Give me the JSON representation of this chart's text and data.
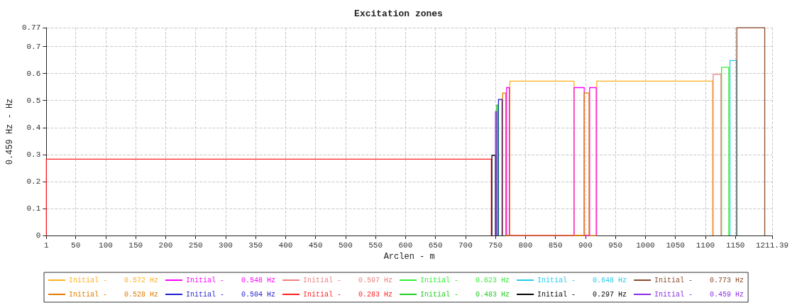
{
  "chart_data": {
    "type": "line",
    "title": "Excitation zones",
    "xlabel": "Arclen - m",
    "ylabel": "0.459 Hz - Hz",
    "xlim": [
      1,
      1211.39
    ],
    "xticks": [
      1,
      50,
      100,
      150,
      200,
      250,
      300,
      350,
      400,
      450,
      500,
      550,
      600,
      650,
      700,
      750,
      800,
      850,
      900,
      950,
      1000,
      1050,
      1100,
      1150,
      1211.39
    ],
    "ylim": [
      0,
      0.77
    ],
    "yticks": [
      0,
      0.1,
      0.2,
      0.3,
      0.4,
      0.5,
      0.6,
      0.7,
      0.77
    ],
    "grid": true,
    "legend": "bottom",
    "marker": "none",
    "line_style": "solid",
    "series": [
      {
        "name": "Initial -    0.572 Hz",
        "color": "#ffb020",
        "x": [
          774,
          774,
          881,
          881,
          919,
          919,
          1112,
          1112
        ],
        "values": [
          0,
          0.572,
          0.572,
          0,
          0,
          0.572,
          0.572,
          0
        ]
      },
      {
        "name": "Initial -    0.548 Hz",
        "color": "#ff00ff",
        "x": [
          768.5,
          768.5,
          773,
          773,
          881,
          881,
          898,
          898,
          907,
          907,
          918,
          918
        ],
        "values": [
          0,
          0.548,
          0.548,
          0,
          0,
          0.548,
          0.548,
          0,
          0,
          0.548,
          0.548,
          0
        ]
      },
      {
        "name": "Initial -    0.597 Hz",
        "color": "#f08080",
        "x": [
          1113,
          1113,
          1126,
          1126
        ],
        "values": [
          0,
          0.597,
          0.597,
          0
        ]
      },
      {
        "name": "Initial -    0.623 Hz",
        "color": "#33ee33",
        "x": [
          1127,
          1127,
          1139,
          1139
        ],
        "values": [
          0,
          0.623,
          0.623,
          0
        ]
      },
      {
        "name": "Initial -    0.648 Hz",
        "color": "#22ccee",
        "x": [
          1141,
          1141,
          1152,
          1152
        ],
        "values": [
          0,
          0.648,
          0.648,
          0
        ]
      },
      {
        "name": "Initial -    0.773 Hz",
        "color": "#8b4a2b",
        "x": [
          1152.5,
          1152.5,
          1199,
          1199
        ],
        "values": [
          0,
          0.77,
          0.77,
          0
        ]
      },
      {
        "name": "Initial -    0.528 Hz",
        "color": "#e07b00",
        "x": [
          762,
          762,
          767,
          767,
          898,
          898,
          906,
          906
        ],
        "values": [
          0,
          0.528,
          0.528,
          0,
          0,
          0.528,
          0.528,
          0
        ]
      },
      {
        "name": "Initial -    0.504 Hz",
        "color": "#1c1ccc",
        "x": [
          755,
          755,
          761,
          761
        ],
        "values": [
          0,
          0.504,
          0.504,
          0
        ]
      },
      {
        "name": "Initial -    0.283 Hz",
        "color": "#ff2020",
        "x": [
          1,
          1,
          743,
          743
        ],
        "values": [
          0,
          0.283,
          0.283,
          0
        ]
      },
      {
        "name": "Initial -    0.483 Hz",
        "color": "#22cc22",
        "x": [
          752,
          752,
          754,
          754
        ],
        "values": [
          0,
          0.483,
          0.483,
          0
        ]
      },
      {
        "name": "Initial -    0.297 Hz",
        "color": "#000000",
        "x": [
          744,
          744,
          750,
          750
        ],
        "values": [
          0,
          0.297,
          0.297,
          0
        ]
      },
      {
        "name": "Initial -    0.459 Hz",
        "color": "#8a2be2",
        "x": [
          750,
          750,
          752,
          752
        ],
        "values": [
          0,
          0.459,
          0.459,
          0
        ]
      }
    ]
  }
}
